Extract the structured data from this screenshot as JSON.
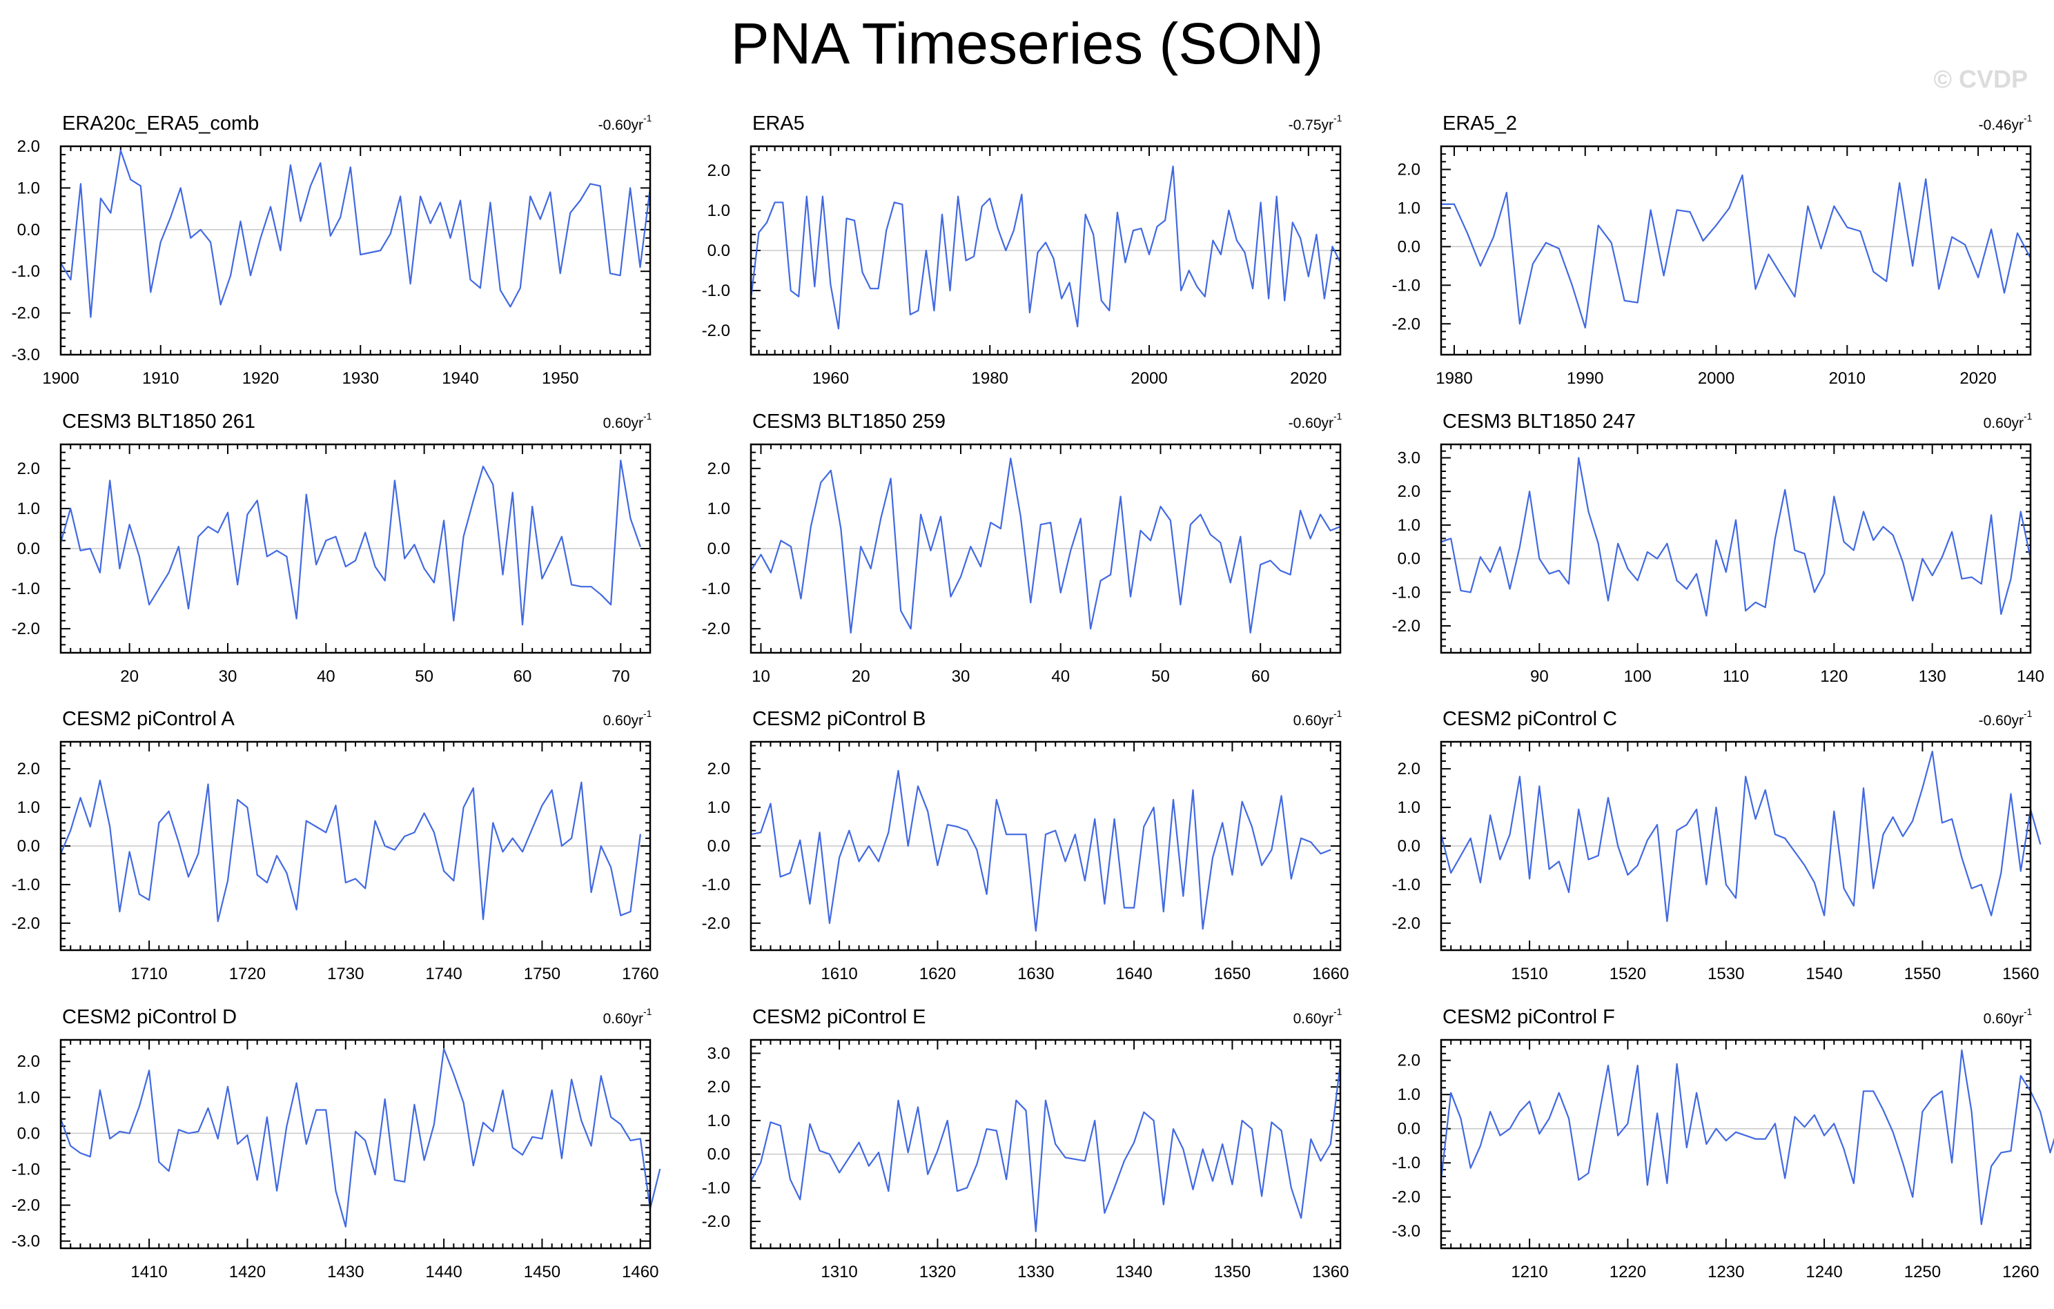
{
  "title": "PNA Timeseries (SON)",
  "watermark": "© CVDP",
  "colors": {
    "line": "#4169e1",
    "zero_line": "#c8c8c8",
    "axis": "#000000"
  },
  "chart_data": [
    {
      "type": "line",
      "title": "ERA20c_ERA5_comb",
      "trend": "-0.60yr",
      "trend_exp": "-1",
      "xlim": [
        1900,
        1959
      ],
      "ylim": [
        -3,
        2
      ],
      "xticks": [
        1900,
        1910,
        1920,
        1930,
        1940,
        1950
      ],
      "yticks": [
        2,
        1,
        0,
        -1,
        -2,
        -3
      ],
      "yticklabels": [
        "2.0",
        "1.0",
        "0.0",
        "-1.0",
        "-2.0",
        "-3.0"
      ],
      "x_start": 1900,
      "values": [
        -0.8,
        -1.2,
        1.1,
        -2.1,
        0.75,
        0.4,
        1.9,
        1.2,
        1.05,
        -1.5,
        -0.3,
        0.3,
        1.0,
        -0.2,
        0.0,
        -0.3,
        -1.8,
        -1.1,
        0.2,
        -1.1,
        -0.2,
        0.55,
        -0.5,
        1.55,
        0.2,
        1.05,
        1.6,
        -0.15,
        0.3,
        1.5,
        -0.6,
        -0.55,
        -0.5,
        -0.1,
        0.8,
        -1.3,
        0.8,
        0.15,
        0.65,
        -0.2,
        0.7,
        -1.2,
        -1.4,
        0.65,
        -1.45,
        -1.85,
        -1.4,
        0.8,
        0.25,
        0.9,
        -1.05,
        0.4,
        0.7,
        1.1,
        1.05,
        -1.05,
        -1.1,
        1.0,
        -0.9,
        1.0
      ]
    },
    {
      "type": "line",
      "title": "ERA5",
      "trend": "-0.75yr",
      "trend_exp": "-1",
      "xlim": [
        1950,
        2024
      ],
      "ylim": [
        -2.6,
        2.6
      ],
      "xticks": [
        1960,
        1980,
        2000,
        2020
      ],
      "yticks": [
        2,
        1,
        0,
        -1,
        -2
      ],
      "yticklabels": [
        "2.0",
        "1.0",
        "0.0",
        "-1.0",
        "-2.0"
      ],
      "x_start": 1950,
      "values": [
        -1.2,
        0.45,
        0.7,
        1.2,
        1.2,
        -1.0,
        -1.15,
        1.35,
        -0.9,
        1.35,
        -0.85,
        -1.95,
        0.8,
        0.75,
        -0.55,
        -0.95,
        -0.95,
        0.5,
        1.2,
        1.15,
        -1.6,
        -1.5,
        0.0,
        -1.5,
        0.9,
        -1.0,
        1.35,
        -0.25,
        -0.15,
        1.1,
        1.3,
        0.55,
        0.0,
        0.5,
        1.4,
        -1.55,
        -0.05,
        0.2,
        -0.2,
        -1.2,
        -0.8,
        -1.9,
        0.9,
        0.4,
        -1.25,
        -1.5,
        0.95,
        -0.3,
        0.5,
        0.55,
        -0.1,
        0.6,
        0.75,
        2.1,
        -1.0,
        -0.5,
        -0.9,
        -1.15,
        0.25,
        -0.1,
        1.0,
        0.25,
        -0.05,
        -0.95,
        1.2,
        -1.2,
        1.35,
        -1.25,
        0.7,
        0.3,
        -0.65,
        0.4,
        -1.2,
        0.1,
        -0.3
      ]
    },
    {
      "type": "line",
      "title": "ERA5_2",
      "trend": "-0.46yr",
      "trend_exp": "-1",
      "xlim": [
        1979,
        2024
      ],
      "ylim": [
        -2.8,
        2.6
      ],
      "xticks": [
        1980,
        1990,
        2000,
        2010,
        2020
      ],
      "yticks": [
        2,
        1,
        0,
        -1,
        -2
      ],
      "yticklabels": [
        "2.0",
        "1.0",
        "0.0",
        "-1.0",
        "-2.0"
      ],
      "x_start": 1979,
      "values": [
        1.1,
        1.1,
        0.35,
        -0.5,
        0.25,
        1.4,
        -2.0,
        -0.45,
        0.1,
        -0.05,
        -1.0,
        -2.1,
        0.55,
        0.1,
        -1.4,
        -1.45,
        0.95,
        -0.75,
        0.95,
        0.9,
        0.15,
        0.55,
        1.0,
        1.85,
        -1.1,
        -0.2,
        -0.75,
        -1.3,
        1.05,
        -0.05,
        1.05,
        0.5,
        0.4,
        -0.65,
        -0.9,
        1.65,
        -0.5,
        1.75,
        -1.1,
        0.25,
        0.05,
        -0.8,
        0.45,
        -1.2,
        0.35,
        -0.3
      ]
    },
    {
      "type": "line",
      "title": "CESM3 BLT1850 261",
      "trend": "0.60yr",
      "trend_exp": "-1",
      "xlim": [
        13,
        73
      ],
      "ylim": [
        -2.6,
        2.6
      ],
      "xticks": [
        20,
        30,
        40,
        50,
        60,
        70
      ],
      "yticks": [
        2,
        1,
        0,
        -1,
        -2
      ],
      "yticklabels": [
        "2.0",
        "1.0",
        "0.0",
        "-1.0",
        "-2.0"
      ],
      "x_start": 13,
      "values": [
        0.15,
        1.0,
        -0.05,
        0.0,
        -0.6,
        1.7,
        -0.5,
        0.6,
        -0.2,
        -1.4,
        -1.0,
        -0.6,
        0.05,
        -1.5,
        0.3,
        0.55,
        0.4,
        0.9,
        -0.9,
        0.85,
        1.2,
        -0.2,
        -0.05,
        -0.2,
        -1.75,
        1.35,
        -0.4,
        0.2,
        0.3,
        -0.45,
        -0.3,
        0.4,
        -0.45,
        -0.8,
        1.7,
        -0.25,
        0.1,
        -0.5,
        -0.85,
        0.7,
        -1.8,
        0.3,
        1.2,
        2.05,
        1.6,
        -0.65,
        1.4,
        -1.9,
        1.05,
        -0.75,
        -0.25,
        0.3,
        -0.9,
        -0.95,
        -0.95,
        -1.15,
        -1.4,
        2.2,
        0.75,
        0.05
      ]
    },
    {
      "type": "line",
      "title": "CESM3 BLT1850 259",
      "trend": "-0.60yr",
      "trend_exp": "-1",
      "xlim": [
        9,
        68
      ],
      "ylim": [
        -2.6,
        2.6
      ],
      "xticks": [
        10,
        20,
        30,
        40,
        50,
        60
      ],
      "yticks": [
        2,
        1,
        0,
        -1,
        -2
      ],
      "yticklabels": [
        "2.0",
        "1.0",
        "0.0",
        "-1.0",
        "-2.0"
      ],
      "x_start": 9,
      "values": [
        -0.55,
        -0.15,
        -0.6,
        0.2,
        0.05,
        -1.25,
        0.55,
        1.65,
        1.95,
        0.5,
        -2.1,
        0.05,
        -0.5,
        0.75,
        1.75,
        -1.55,
        -2.0,
        0.85,
        -0.05,
        0.8,
        -1.2,
        -0.7,
        0.05,
        -0.45,
        0.65,
        0.5,
        2.25,
        0.8,
        -1.35,
        0.6,
        0.65,
        -1.1,
        -0.05,
        0.75,
        -2.0,
        -0.8,
        -0.65,
        1.3,
        -1.2,
        0.45,
        0.2,
        1.05,
        0.7,
        -1.4,
        0.6,
        0.85,
        0.35,
        0.15,
        -0.85,
        0.3,
        -2.1,
        -0.4,
        -0.3,
        -0.55,
        -0.65,
        0.95,
        0.25,
        0.85,
        0.45,
        0.55
      ]
    },
    {
      "type": "line",
      "title": "CESM3 BLT1850 247",
      "trend": "0.60yr",
      "trend_exp": "-1",
      "xlim": [
        80,
        140
      ],
      "ylim": [
        -2.8,
        3.4
      ],
      "xticks": [
        90,
        100,
        110,
        120,
        130,
        140
      ],
      "yticks": [
        3,
        2,
        1,
        0,
        -1,
        -2
      ],
      "yticklabels": [
        "3.0",
        "2.0",
        "1.0",
        "0.0",
        "-1.0",
        "-2.0"
      ],
      "x_start": 80,
      "values": [
        0.5,
        0.6,
        -0.95,
        -1.0,
        0.05,
        -0.4,
        0.35,
        -0.9,
        0.35,
        2.0,
        0.0,
        -0.45,
        -0.35,
        -0.75,
        3.0,
        1.4,
        0.45,
        -1.25,
        0.45,
        -0.3,
        -0.65,
        0.2,
        0.0,
        0.45,
        -0.65,
        -0.9,
        -0.45,
        -1.7,
        0.55,
        -0.4,
        1.15,
        -1.55,
        -1.3,
        -1.45,
        0.6,
        2.05,
        0.25,
        0.15,
        -1.0,
        -0.45,
        1.85,
        0.5,
        0.25,
        1.4,
        0.55,
        0.95,
        0.7,
        -0.1,
        -1.25,
        0.0,
        -0.5,
        0.05,
        0.8,
        -0.6,
        -0.55,
        -0.75,
        1.3,
        -1.65,
        -0.6,
        1.4,
        0.0
      ]
    },
    {
      "type": "line",
      "title": "CESM2 piControl A",
      "trend": "0.60yr",
      "trend_exp": "-1",
      "xlim": [
        1701,
        1761
      ],
      "ylim": [
        -2.7,
        2.7
      ],
      "xticks": [
        1710,
        1720,
        1730,
        1740,
        1750,
        1760
      ],
      "yticks": [
        2,
        1,
        0,
        -1,
        -2
      ],
      "yticklabels": [
        "2.0",
        "1.0",
        "0.0",
        "-1.0",
        "-2.0"
      ],
      "x_start": 1701,
      "values": [
        -0.2,
        0.4,
        1.25,
        0.5,
        1.7,
        0.5,
        -1.7,
        -0.15,
        -1.25,
        -1.4,
        0.6,
        0.9,
        0.1,
        -0.8,
        -0.2,
        1.6,
        -1.95,
        -0.9,
        1.2,
        1.0,
        -0.75,
        -0.95,
        -0.25,
        -0.7,
        -1.65,
        0.65,
        0.5,
        0.35,
        1.05,
        -0.95,
        -0.85,
        -1.1,
        0.65,
        0.0,
        -0.1,
        0.25,
        0.35,
        0.85,
        0.35,
        -0.65,
        -0.9,
        1.0,
        1.5,
        -1.9,
        0.6,
        -0.15,
        0.2,
        -0.15,
        0.45,
        1.05,
        1.45,
        0.0,
        0.2,
        1.65,
        -1.2,
        0.0,
        -0.55,
        -1.8,
        -1.7,
        0.3
      ]
    },
    {
      "type": "line",
      "title": "CESM2 piControl B",
      "trend": "0.60yr",
      "trend_exp": "-1",
      "xlim": [
        1601,
        1661
      ],
      "ylim": [
        -2.7,
        2.7
      ],
      "xticks": [
        1610,
        1620,
        1630,
        1640,
        1650,
        1660
      ],
      "yticks": [
        2,
        1,
        0,
        -1,
        -2
      ],
      "yticklabels": [
        "2.0",
        "1.0",
        "0.0",
        "-1.0",
        "-2.0"
      ],
      "x_start": 1601,
      "values": [
        0.3,
        0.35,
        1.1,
        -0.8,
        -0.7,
        0.15,
        -1.5,
        0.35,
        -2.0,
        -0.3,
        0.4,
        -0.4,
        0.0,
        -0.4,
        0.35,
        1.95,
        0.0,
        1.55,
        0.9,
        -0.5,
        0.55,
        0.5,
        0.4,
        -0.1,
        -1.25,
        1.2,
        0.3,
        0.3,
        0.3,
        -2.2,
        0.3,
        0.4,
        -0.4,
        0.3,
        -0.9,
        0.7,
        -1.5,
        0.7,
        -1.6,
        -1.6,
        0.5,
        1.0,
        -1.7,
        1.2,
        -1.3,
        1.45,
        -2.15,
        -0.3,
        0.6,
        -0.75,
        1.15,
        0.5,
        -0.5,
        -0.1,
        1.3,
        -0.85,
        0.2,
        0.1,
        -0.2,
        -0.1
      ]
    },
    {
      "type": "line",
      "title": "CESM2 piControl C",
      "trend": "-0.60yr",
      "trend_exp": "-1",
      "xlim": [
        1501,
        1561
      ],
      "ylim": [
        -2.7,
        2.7
      ],
      "xticks": [
        1510,
        1520,
        1530,
        1540,
        1550,
        1560
      ],
      "yticks": [
        2,
        1,
        0,
        -1,
        -2
      ],
      "yticklabels": [
        "2.0",
        "1.0",
        "0.0",
        "-1.0",
        "-2.0"
      ],
      "x_start": 1501,
      "values": [
        0.3,
        -0.7,
        -0.25,
        0.2,
        -0.95,
        0.8,
        -0.35,
        0.3,
        1.8,
        -0.85,
        1.55,
        -0.6,
        -0.4,
        -1.2,
        0.95,
        -0.35,
        -0.25,
        1.25,
        0.0,
        -0.75,
        -0.5,
        0.15,
        0.55,
        -1.95,
        0.4,
        0.55,
        0.95,
        -1.0,
        1.0,
        -1.0,
        -1.35,
        1.8,
        0.7,
        1.45,
        0.3,
        0.2,
        -0.15,
        -0.5,
        -0.95,
        -1.8,
        0.9,
        -1.1,
        -1.55,
        1.5,
        -1.1,
        0.3,
        0.75,
        0.25,
        0.65,
        1.5,
        2.45,
        0.6,
        0.7,
        -0.3,
        -1.1,
        -1.0,
        -1.8,
        -0.7,
        1.35,
        -0.65,
        0.95,
        0.05
      ]
    },
    {
      "type": "line",
      "title": "CESM2 piControl D",
      "trend": "0.60yr",
      "trend_exp": "-1",
      "xlim": [
        1401,
        1461
      ],
      "ylim": [
        -3.2,
        2.6
      ],
      "xticks": [
        1410,
        1420,
        1430,
        1440,
        1450,
        1460
      ],
      "yticks": [
        2,
        1,
        0,
        -1,
        -2,
        -3
      ],
      "yticklabels": [
        "2.0",
        "1.0",
        "0.0",
        "-1.0",
        "-2.0",
        "-3.0"
      ],
      "x_start": 1401,
      "values": [
        0.4,
        -0.35,
        -0.55,
        -0.65,
        1.2,
        -0.15,
        0.05,
        0.0,
        0.75,
        1.75,
        -0.8,
        -1.05,
        0.1,
        0.0,
        0.05,
        0.7,
        -0.15,
        1.3,
        -0.3,
        -0.05,
        -1.3,
        0.45,
        -1.6,
        0.2,
        1.4,
        -0.3,
        0.65,
        0.65,
        -1.6,
        -2.6,
        0.05,
        -0.2,
        -1.15,
        0.95,
        -1.3,
        -1.35,
        0.8,
        -0.75,
        0.25,
        2.35,
        1.65,
        0.85,
        -0.9,
        0.3,
        0.05,
        1.2,
        -0.4,
        -0.6,
        -0.1,
        -0.15,
        1.2,
        -0.7,
        1.5,
        0.35,
        -0.35,
        1.6,
        0.45,
        0.25,
        -0.2,
        -0.15,
        -2.1,
        -1.0
      ]
    },
    {
      "type": "line",
      "title": "CESM2 piControl E",
      "trend": "0.60yr",
      "trend_exp": "-1",
      "xlim": [
        1301,
        1361
      ],
      "ylim": [
        -2.8,
        3.4
      ],
      "xticks": [
        1310,
        1320,
        1330,
        1340,
        1350,
        1360
      ],
      "yticks": [
        3,
        2,
        1,
        0,
        -1,
        -2
      ],
      "yticklabels": [
        "3.0",
        "2.0",
        "1.0",
        "0.0",
        "-1.0",
        "-2.0"
      ],
      "x_start": 1301,
      "values": [
        -0.8,
        -0.25,
        0.95,
        0.85,
        -0.75,
        -1.35,
        0.9,
        0.1,
        0.0,
        -0.55,
        -0.1,
        0.35,
        -0.35,
        0.05,
        -1.1,
        1.6,
        0.05,
        1.4,
        -0.6,
        0.1,
        1.0,
        -1.1,
        -1.0,
        -0.3,
        0.75,
        0.7,
        -0.75,
        1.6,
        1.3,
        -2.3,
        1.6,
        0.3,
        -0.1,
        -0.15,
        -0.2,
        1.0,
        -1.75,
        -1.0,
        -0.2,
        0.35,
        1.25,
        1.0,
        -1.5,
        0.75,
        0.15,
        -1.05,
        0.15,
        -0.8,
        0.3,
        -0.9,
        1.0,
        0.75,
        -1.25,
        0.95,
        0.7,
        -1.0,
        -1.9,
        0.45,
        -0.2,
        0.3,
        2.7
      ]
    },
    {
      "type": "line",
      "title": "CESM2 piControl F",
      "trend": "0.60yr",
      "trend_exp": "-1",
      "xlim": [
        1201,
        1261
      ],
      "ylim": [
        -3.5,
        2.6
      ],
      "xticks": [
        1210,
        1220,
        1230,
        1240,
        1250,
        1260
      ],
      "yticks": [
        2,
        1,
        0,
        -1,
        -2,
        -3
      ],
      "yticklabels": [
        "2.0",
        "1.0",
        "0.0",
        "-1.0",
        "-2.0",
        "-3.0"
      ],
      "x_start": 1201,
      "values": [
        -1.5,
        1.05,
        0.3,
        -1.15,
        -0.5,
        0.5,
        -0.2,
        0.0,
        0.5,
        0.8,
        -0.15,
        0.3,
        1.05,
        0.3,
        -1.5,
        -1.3,
        0.3,
        1.85,
        -0.2,
        0.15,
        1.85,
        -1.65,
        0.45,
        -1.6,
        1.9,
        -0.55,
        1.05,
        -0.45,
        0.0,
        -0.35,
        -0.1,
        -0.2,
        -0.3,
        -0.3,
        0.15,
        -1.45,
        0.35,
        0.05,
        0.4,
        -0.2,
        0.15,
        -0.6,
        -1.6,
        1.1,
        1.1,
        0.55,
        -0.1,
        -1.0,
        -2.0,
        0.5,
        0.9,
        1.1,
        -1.0,
        2.3,
        0.5,
        -2.8,
        -1.1,
        -0.7,
        -0.65,
        1.55,
        1.1,
        0.5,
        -0.7,
        0.25
      ]
    }
  ]
}
